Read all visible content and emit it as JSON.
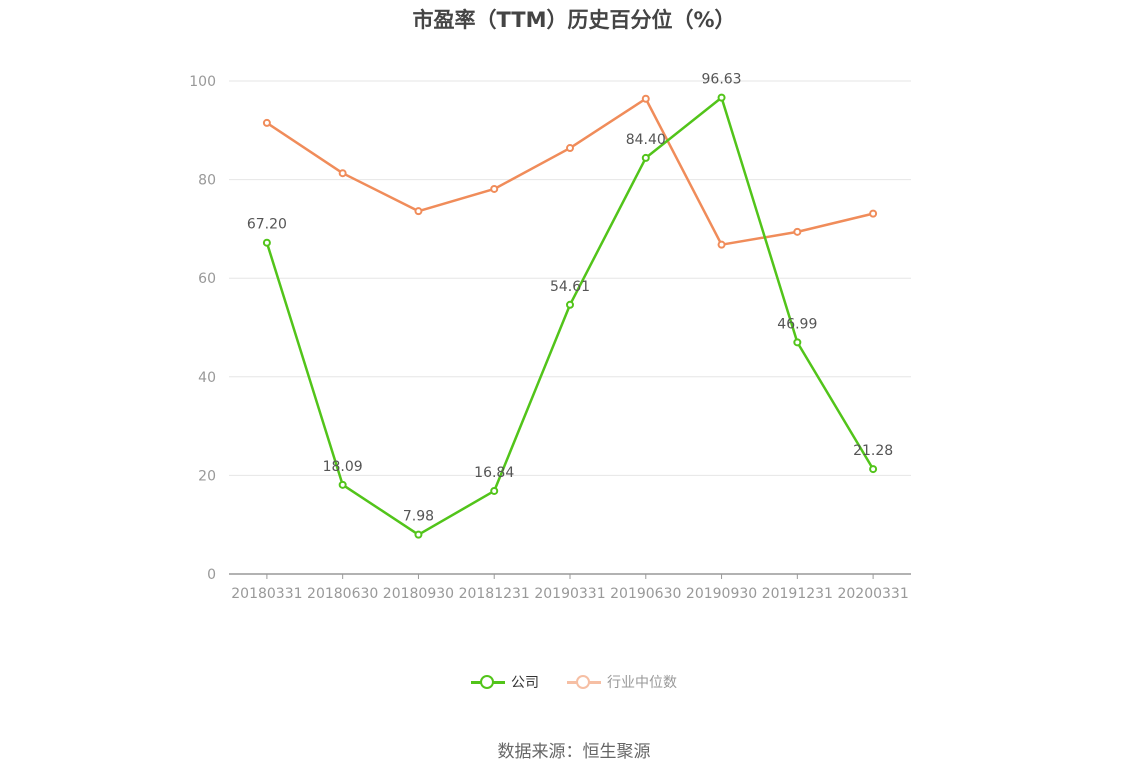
{
  "title": "市盈率（TTM）历史百分位（%）",
  "source_note": "数据来源：恒生聚源",
  "chart_data": {
    "type": "line",
    "title": "市盈率（TTM）历史百分位（%）",
    "x": [
      "20180331",
      "20180630",
      "20180930",
      "20181231",
      "20190331",
      "20190630",
      "20190930",
      "20191231",
      "20200331"
    ],
    "ylim": [
      0,
      100
    ],
    "yticks": [
      0,
      20,
      40,
      60,
      80,
      100
    ],
    "grid": true,
    "legend_position": "bottom",
    "series": [
      {
        "name": "公司",
        "color": "#52c41a",
        "values": [
          67.2,
          18.09,
          7.98,
          16.84,
          54.61,
          84.4,
          96.63,
          46.99,
          21.28
        ],
        "labels": [
          "67.20",
          "18.09",
          "7.98",
          "16.84",
          "54.61",
          "84.40",
          "96.63",
          "46.99",
          "21.28"
        ]
      },
      {
        "name": "行业中位数",
        "color": "#f08c5a",
        "values": [
          91.5,
          81.3,
          73.6,
          78.1,
          86.4,
          96.4,
          66.8,
          69.4,
          73.1
        ]
      }
    ]
  }
}
